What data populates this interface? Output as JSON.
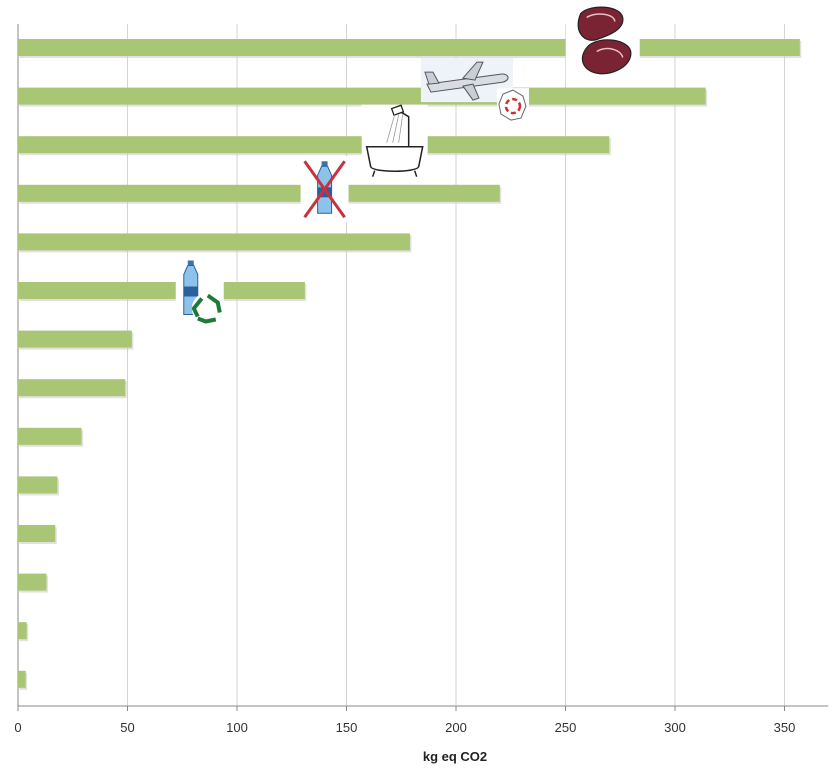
{
  "chart_data": {
    "type": "bar",
    "orientation": "horizontal",
    "title": "",
    "xlabel": "kg eq CO2",
    "ylabel": "",
    "xlim": [
      0,
      370
    ],
    "xticks": [
      0,
      50,
      100,
      150,
      200,
      250,
      300,
      350
    ],
    "grid": true,
    "legend": "none",
    "values": [
      357,
      314,
      270,
      220,
      179,
      131,
      52,
      49,
      29,
      18,
      17,
      13,
      4,
      3.5
    ],
    "bar_color": "#a8c674",
    "bar_shadow": "#c8c8c8",
    "gridline_color": "#d4d4d4",
    "pictograms": [
      {
        "bar": 0,
        "x": 267,
        "icon": "steak-icon"
      },
      {
        "bar": 1,
        "x": 205,
        "icon": "airplane-icon"
      },
      {
        "bar": 1,
        "x": 226,
        "icon": "france-map-icon"
      },
      {
        "bar": 2,
        "x": 172,
        "icon": "bathtub-shower-icon"
      },
      {
        "bar": 3,
        "x": 140,
        "icon": "crossed-water-bottle-icon"
      },
      {
        "bar": 5,
        "x": 83,
        "icon": "recycled-water-bottle-icon"
      }
    ]
  }
}
